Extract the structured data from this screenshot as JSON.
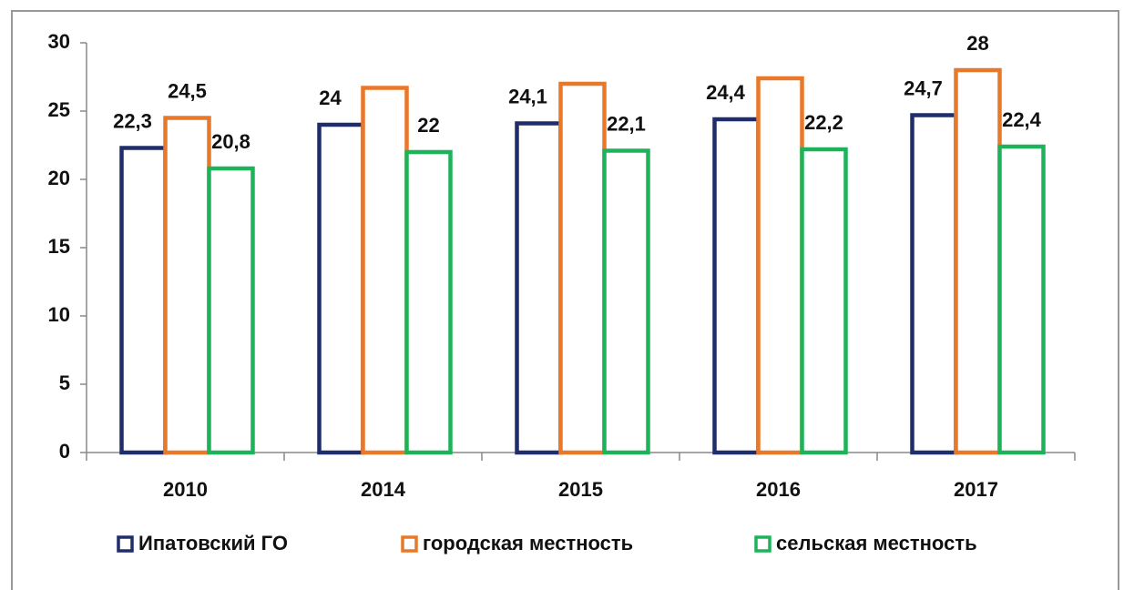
{
  "chart_data": {
    "type": "bar",
    "categories": [
      "2010",
      "2014",
      "2015",
      "2016",
      "2017"
    ],
    "series": [
      {
        "name": "Ипатовский ГО",
        "color": "#1f2d6b",
        "values": [
          22.3,
          24,
          24.1,
          24.4,
          24.7
        ],
        "value_labels": [
          "22,3",
          "24",
          "24,1",
          "24,4",
          "24,7"
        ]
      },
      {
        "name": "городская местность",
        "color": "#e8782a",
        "values": [
          24.5,
          26.7,
          27,
          27.4,
          28
        ],
        "value_labels": [
          "24,5",
          null,
          null,
          null,
          "28"
        ]
      },
      {
        "name": "сельская местность",
        "color": "#1eb35a",
        "values": [
          20.8,
          22,
          22.1,
          22.2,
          22.4
        ],
        "value_labels": [
          "20,8",
          "22",
          "22,1",
          "22,2",
          "22,4"
        ]
      }
    ],
    "ylim": [
      0,
      30
    ],
    "yticks": [
      0,
      5,
      10,
      15,
      20,
      25,
      30
    ],
    "grid": false,
    "legend": "bottom"
  }
}
